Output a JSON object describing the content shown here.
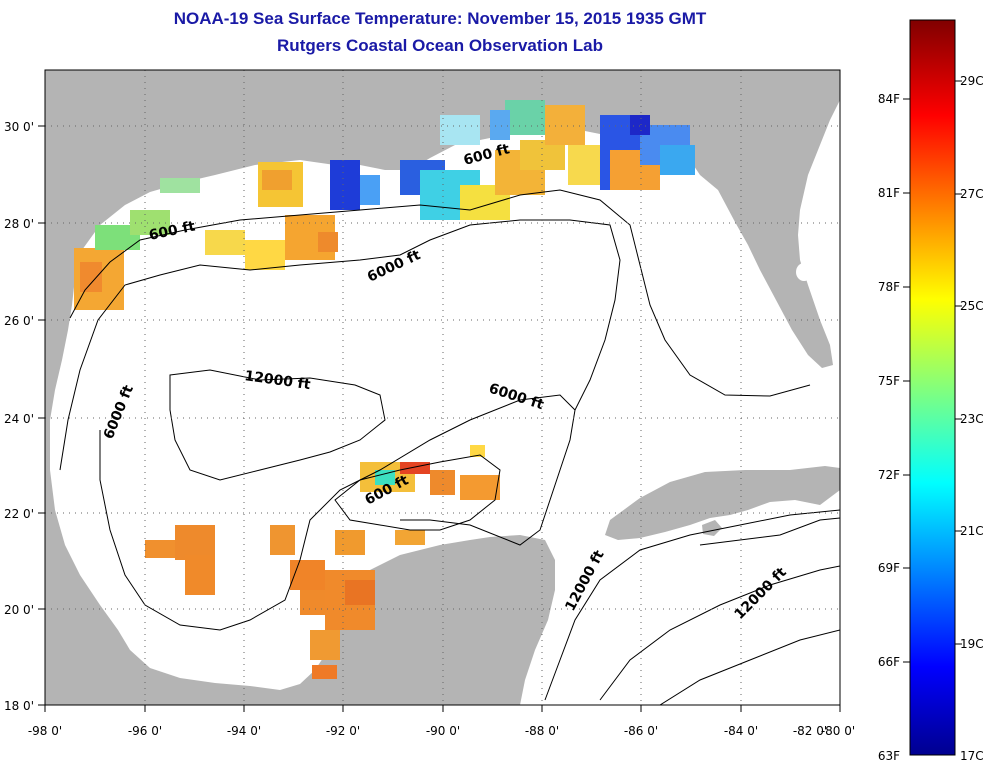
{
  "title": "NOAA-19 Sea Surface Temperature:  November 15, 2015 1935 GMT",
  "subtitle": "Rutgers Coastal Ocean Observation Lab",
  "map": {
    "lon_labels": [
      "-98 0'",
      "-96 0'",
      "-94 0'",
      "-92 0'",
      "-90 0'",
      "-88 0'",
      "-86 0'",
      "-84 0'",
      "-82 0'",
      "-80 0'"
    ],
    "lat_labels": [
      "18 0'",
      "20 0'",
      "22 0'",
      "24 0'",
      "26 0'",
      "28 0'",
      "30 0'"
    ],
    "contour_labels": [
      "600 ft",
      "600 ft",
      "6000 ft",
      "12000 ft",
      "6000 ft",
      "6000 ft",
      "600 ft",
      "12000 ft",
      "12000 ft"
    ],
    "colors": {
      "land": "#b4b4b4",
      "sea": "#ffffff",
      "title": "#1a1aa6"
    }
  },
  "colorbar": {
    "f_labels": [
      "84F",
      "81F",
      "78F",
      "75F",
      "72F",
      "69F",
      "66F",
      "63F"
    ],
    "c_labels": [
      "29C",
      "27C",
      "25C",
      "23C",
      "21C",
      "19C",
      "17C"
    ],
    "min_c": 17,
    "max_c": 30,
    "colormap": [
      "#00008f",
      "#0000ff",
      "#00ffff",
      "#ffff00",
      "#ff0000",
      "#800000"
    ]
  }
}
